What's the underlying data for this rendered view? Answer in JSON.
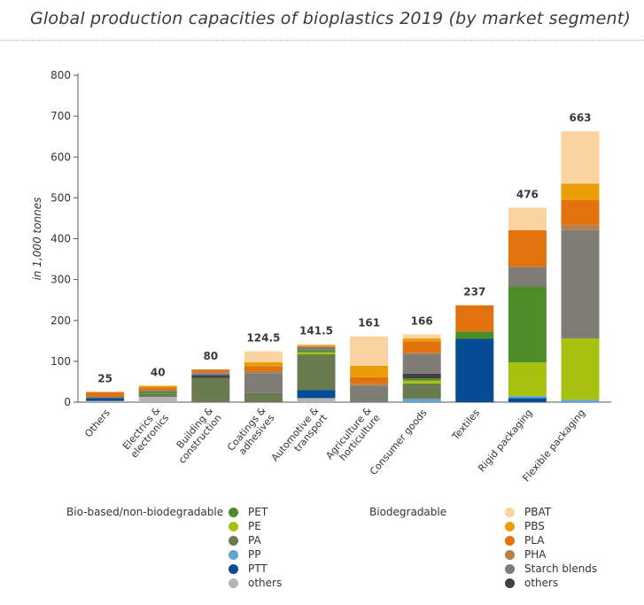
{
  "title": "Global production capacities of bioplastics 2019 (by market segment)",
  "chart_data": {
    "type": "bar",
    "stacked": true,
    "title": "Global production capacities of bioplastics 2019 (by market segment)",
    "ylabel": "in 1,000 tonnes",
    "xlabel": "",
    "ylim": [
      0,
      800
    ],
    "yticks": [
      0,
      100,
      200,
      300,
      400,
      500,
      600,
      700,
      800
    ],
    "grid": false,
    "categories": [
      "Others",
      "Electrics & electronics",
      "Building & construction",
      "Coatings & adhesives",
      "Automotive & transport",
      "Agriculture & horticulture",
      "Consumer goods",
      "Textiles",
      "Rigid packaging",
      "Flexible packaging"
    ],
    "totals": [
      "25",
      "40",
      "80",
      "124.5",
      "141.5",
      "161",
      "166",
      "237",
      "476",
      "663"
    ],
    "series": [
      {
        "name": "others",
        "group": "Bio-based/non-biodegradable",
        "color": "#b4b4b4",
        "values": [
          3,
          13,
          0,
          0,
          10,
          0,
          0,
          0,
          0,
          0
        ]
      },
      {
        "name": "PTT",
        "group": "Bio-based/non-biodegradable",
        "color": "#064c95",
        "values": [
          7,
          0,
          0,
          0,
          20,
          0,
          0,
          155,
          10,
          0
        ]
      },
      {
        "name": "PP",
        "group": "Bio-based/non-biodegradable",
        "color": "#5ea4d4",
        "values": [
          0,
          0,
          0,
          0,
          0,
          0,
          8,
          0,
          5,
          6
        ]
      },
      {
        "name": "PA",
        "group": "Bio-based/non-biodegradable",
        "color": "#6a7b52",
        "values": [
          0,
          7,
          59,
          22,
          87,
          0,
          38,
          0,
          0,
          0
        ]
      },
      {
        "name": "PE",
        "group": "Bio-based/non-biodegradable",
        "color": "#a7c10f",
        "values": [
          0,
          0,
          0,
          0,
          5,
          0,
          7,
          0,
          82,
          150
        ]
      },
      {
        "name": "PET",
        "group": "Bio-based/non-biodegradable",
        "color": "#4d8d28",
        "values": [
          0,
          5,
          0,
          0,
          5,
          0,
          5,
          18,
          186,
          0
        ]
      },
      {
        "name": "others",
        "group": "Biodegradable",
        "color": "#414141",
        "values": [
          0,
          0,
          7,
          0,
          0,
          0,
          12,
          0,
          0,
          0
        ]
      },
      {
        "name": "Starch blends",
        "group": "Biodegradable",
        "color": "#7e7c75",
        "values": [
          3,
          4,
          5,
          49,
          8,
          40,
          48,
          0,
          48,
          265
        ]
      },
      {
        "name": "PHA",
        "group": "Biodegradable",
        "color": "#b4804f",
        "values": [
          0,
          0,
          4,
          5,
          0,
          5,
          3,
          0,
          0,
          13
        ]
      },
      {
        "name": "PLA",
        "group": "Biodegradable",
        "color": "#e2720d",
        "values": [
          12,
          7,
          5,
          12,
          2,
          16,
          28,
          64,
          90,
          61
        ]
      },
      {
        "name": "PBS",
        "group": "Biodegradable",
        "color": "#e99e06",
        "values": [
          0,
          4,
          0,
          10,
          3,
          28,
          7,
          0,
          0,
          40
        ]
      },
      {
        "name": "PBAT",
        "group": "Biodegradable",
        "color": "#fcd3a0",
        "values": [
          0,
          0,
          0,
          26.5,
          1.5,
          72,
          10,
          0,
          55,
          128
        ]
      }
    ],
    "legend_placement": "bottom"
  },
  "legend": {
    "nonbio_heading": "Bio-based/non-biodegradable",
    "bio_heading": "Biodegradable",
    "nonbio_items": [
      {
        "label": "PET",
        "color": "#4d8d28"
      },
      {
        "label": "PE",
        "color": "#a7c10f"
      },
      {
        "label": "PA",
        "color": "#6a7b52"
      },
      {
        "label": "PP",
        "color": "#5ea4d4"
      },
      {
        "label": "PTT",
        "color": "#064c95"
      },
      {
        "label": "others",
        "color": "#b4b4b4"
      }
    ],
    "bio_items": [
      {
        "label": "PBAT",
        "color": "#fcd3a0"
      },
      {
        "label": "PBS",
        "color": "#e99e06"
      },
      {
        "label": "PLA",
        "color": "#e2720d"
      },
      {
        "label": "PHA",
        "color": "#b4804f"
      },
      {
        "label": "Starch blends",
        "color": "#7e7c75"
      },
      {
        "label": "others",
        "color": "#414141"
      }
    ]
  }
}
